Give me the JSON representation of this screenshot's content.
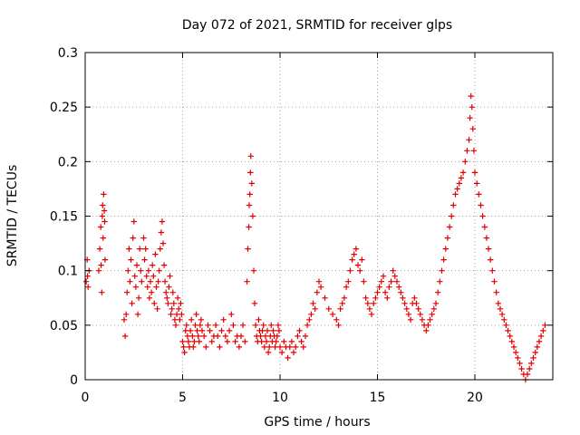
{
  "chart_data": {
    "type": "scatter",
    "title": "Day 072 of 2021, SRMTID for receiver glps",
    "xlabel": "GPS time / hours",
    "ylabel": "SRMTID / TECUs",
    "xlim": [
      0,
      24
    ],
    "ylim": [
      0,
      0.3
    ],
    "xticks": [
      0,
      5,
      10,
      15,
      20
    ],
    "xtick_labels": [
      "0",
      "5",
      "10",
      "15",
      "20"
    ],
    "yticks": [
      0,
      0.05,
      0.1,
      0.15,
      0.2,
      0.25,
      0.3
    ],
    "ytick_labels": [
      "0",
      "0.05",
      "0.1",
      "0.15",
      "0.2",
      "0.25",
      "0.3"
    ],
    "grid": true,
    "marker": "+",
    "color": "#e00000",
    "series": [
      {
        "name": "SRMTID",
        "points": [
          [
            0.05,
            0.09
          ],
          [
            0.1,
            0.11
          ],
          [
            0.12,
            0.095
          ],
          [
            0.15,
            0.085
          ],
          [
            0.2,
            0.1
          ],
          [
            0.7,
            0.1
          ],
          [
            0.75,
            0.12
          ],
          [
            0.8,
            0.14
          ],
          [
            0.82,
            0.105
          ],
          [
            0.85,
            0.08
          ],
          [
            0.88,
            0.15
          ],
          [
            0.9,
            0.16
          ],
          [
            0.92,
            0.13
          ],
          [
            0.95,
            0.17
          ],
          [
            0.98,
            0.155
          ],
          [
            1.0,
            0.145
          ],
          [
            1.02,
            0.11
          ],
          [
            2.0,
            0.055
          ],
          [
            2.05,
            0.04
          ],
          [
            2.1,
            0.06
          ],
          [
            2.15,
            0.08
          ],
          [
            2.2,
            0.1
          ],
          [
            2.25,
            0.12
          ],
          [
            2.3,
            0.09
          ],
          [
            2.35,
            0.11
          ],
          [
            2.4,
            0.07
          ],
          [
            2.45,
            0.13
          ],
          [
            2.5,
            0.145
          ],
          [
            2.55,
            0.095
          ],
          [
            2.6,
            0.085
          ],
          [
            2.65,
            0.105
          ],
          [
            2.7,
            0.06
          ],
          [
            2.75,
            0.075
          ],
          [
            2.8,
            0.12
          ],
          [
            2.85,
            0.1
          ],
          [
            2.9,
            0.09
          ],
          [
            3.0,
            0.13
          ],
          [
            3.05,
            0.11
          ],
          [
            3.1,
            0.12
          ],
          [
            3.15,
            0.095
          ],
          [
            3.2,
            0.085
          ],
          [
            3.25,
            0.1
          ],
          [
            3.3,
            0.075
          ],
          [
            3.35,
            0.09
          ],
          [
            3.4,
            0.08
          ],
          [
            3.45,
            0.105
          ],
          [
            3.5,
            0.095
          ],
          [
            3.55,
            0.07
          ],
          [
            3.6,
            0.115
          ],
          [
            3.65,
            0.085
          ],
          [
            3.7,
            0.065
          ],
          [
            3.75,
            0.09
          ],
          [
            3.8,
            0.1
          ],
          [
            3.85,
            0.12
          ],
          [
            3.9,
            0.135
          ],
          [
            3.95,
            0.145
          ],
          [
            4.0,
            0.125
          ],
          [
            4.05,
            0.105
          ],
          [
            4.1,
            0.09
          ],
          [
            4.15,
            0.08
          ],
          [
            4.2,
            0.075
          ],
          [
            4.25,
            0.07
          ],
          [
            4.3,
            0.085
          ],
          [
            4.35,
            0.095
          ],
          [
            4.4,
            0.06
          ],
          [
            4.45,
            0.065
          ],
          [
            4.5,
            0.08
          ],
          [
            4.55,
            0.07
          ],
          [
            4.6,
            0.055
          ],
          [
            4.65,
            0.05
          ],
          [
            4.7,
            0.06
          ],
          [
            4.75,
            0.075
          ],
          [
            4.8,
            0.065
          ],
          [
            4.85,
            0.055
          ],
          [
            4.9,
            0.07
          ],
          [
            4.95,
            0.06
          ],
          [
            5.0,
            0.035
          ],
          [
            5.05,
            0.03
          ],
          [
            5.1,
            0.025
          ],
          [
            5.15,
            0.045
          ],
          [
            5.2,
            0.05
          ],
          [
            5.25,
            0.04
          ],
          [
            5.3,
            0.035
          ],
          [
            5.35,
            0.03
          ],
          [
            5.4,
            0.045
          ],
          [
            5.45,
            0.055
          ],
          [
            5.5,
            0.04
          ],
          [
            5.55,
            0.03
          ],
          [
            5.6,
            0.035
          ],
          [
            5.65,
            0.05
          ],
          [
            5.7,
            0.06
          ],
          [
            5.75,
            0.045
          ],
          [
            5.8,
            0.04
          ],
          [
            5.85,
            0.035
          ],
          [
            5.9,
            0.05
          ],
          [
            5.95,
            0.055
          ],
          [
            6.0,
            0.045
          ],
          [
            6.1,
            0.04
          ],
          [
            6.2,
            0.03
          ],
          [
            6.3,
            0.05
          ],
          [
            6.4,
            0.045
          ],
          [
            6.5,
            0.035
          ],
          [
            6.6,
            0.04
          ],
          [
            6.7,
            0.05
          ],
          [
            6.8,
            0.04
          ],
          [
            6.9,
            0.03
          ],
          [
            7.0,
            0.045
          ],
          [
            7.1,
            0.055
          ],
          [
            7.2,
            0.04
          ],
          [
            7.3,
            0.035
          ],
          [
            7.4,
            0.045
          ],
          [
            7.5,
            0.06
          ],
          [
            7.6,
            0.05
          ],
          [
            7.7,
            0.035
          ],
          [
            7.8,
            0.04
          ],
          [
            7.9,
            0.03
          ],
          [
            8.0,
            0.04
          ],
          [
            8.1,
            0.05
          ],
          [
            8.2,
            0.035
          ],
          [
            8.3,
            0.09
          ],
          [
            8.35,
            0.12
          ],
          [
            8.4,
            0.14
          ],
          [
            8.42,
            0.16
          ],
          [
            8.45,
            0.17
          ],
          [
            8.48,
            0.19
          ],
          [
            8.5,
            0.205
          ],
          [
            8.55,
            0.18
          ],
          [
            8.6,
            0.15
          ],
          [
            8.65,
            0.1
          ],
          [
            8.7,
            0.07
          ],
          [
            8.75,
            0.05
          ],
          [
            8.8,
            0.04
          ],
          [
            8.85,
            0.035
          ],
          [
            8.9,
            0.055
          ],
          [
            8.95,
            0.045
          ],
          [
            9.0,
            0.04
          ],
          [
            9.05,
            0.035
          ],
          [
            9.1,
            0.045
          ],
          [
            9.15,
            0.05
          ],
          [
            9.2,
            0.03
          ],
          [
            9.25,
            0.04
          ],
          [
            9.3,
            0.035
          ],
          [
            9.35,
            0.045
          ],
          [
            9.4,
            0.025
          ],
          [
            9.45,
            0.03
          ],
          [
            9.5,
            0.04
          ],
          [
            9.55,
            0.05
          ],
          [
            9.6,
            0.035
          ],
          [
            9.65,
            0.045
          ],
          [
            9.7,
            0.04
          ],
          [
            9.75,
            0.03
          ],
          [
            9.8,
            0.035
          ],
          [
            9.85,
            0.04
          ],
          [
            9.9,
            0.05
          ],
          [
            9.95,
            0.045
          ],
          [
            10.0,
            0.03
          ],
          [
            10.1,
            0.025
          ],
          [
            10.2,
            0.035
          ],
          [
            10.3,
            0.03
          ],
          [
            10.4,
            0.02
          ],
          [
            10.5,
            0.03
          ],
          [
            10.6,
            0.035
          ],
          [
            10.7,
            0.025
          ],
          [
            10.8,
            0.03
          ],
          [
            10.9,
            0.04
          ],
          [
            11.0,
            0.045
          ],
          [
            11.1,
            0.035
          ],
          [
            11.2,
            0.03
          ],
          [
            11.3,
            0.04
          ],
          [
            11.4,
            0.05
          ],
          [
            11.5,
            0.055
          ],
          [
            11.6,
            0.06
          ],
          [
            11.7,
            0.07
          ],
          [
            11.8,
            0.065
          ],
          [
            11.9,
            0.08
          ],
          [
            12.0,
            0.09
          ],
          [
            12.1,
            0.085
          ],
          [
            12.3,
            0.075
          ],
          [
            12.5,
            0.065
          ],
          [
            12.7,
            0.06
          ],
          [
            12.9,
            0.055
          ],
          [
            13.0,
            0.05
          ],
          [
            13.1,
            0.065
          ],
          [
            13.2,
            0.07
          ],
          [
            13.3,
            0.075
          ],
          [
            13.4,
            0.085
          ],
          [
            13.5,
            0.09
          ],
          [
            13.6,
            0.1
          ],
          [
            13.7,
            0.11
          ],
          [
            13.8,
            0.115
          ],
          [
            13.9,
            0.12
          ],
          [
            14.0,
            0.105
          ],
          [
            14.1,
            0.1
          ],
          [
            14.2,
            0.11
          ],
          [
            14.3,
            0.09
          ],
          [
            14.4,
            0.075
          ],
          [
            14.5,
            0.07
          ],
          [
            14.6,
            0.065
          ],
          [
            14.7,
            0.06
          ],
          [
            14.8,
            0.07
          ],
          [
            14.9,
            0.075
          ],
          [
            15.0,
            0.08
          ],
          [
            15.1,
            0.085
          ],
          [
            15.2,
            0.09
          ],
          [
            15.3,
            0.095
          ],
          [
            15.4,
            0.08
          ],
          [
            15.5,
            0.075
          ],
          [
            15.6,
            0.085
          ],
          [
            15.7,
            0.09
          ],
          [
            15.8,
            0.1
          ],
          [
            15.9,
            0.095
          ],
          [
            16.0,
            0.09
          ],
          [
            16.1,
            0.085
          ],
          [
            16.2,
            0.08
          ],
          [
            16.3,
            0.075
          ],
          [
            16.4,
            0.07
          ],
          [
            16.5,
            0.065
          ],
          [
            16.6,
            0.06
          ],
          [
            16.7,
            0.055
          ],
          [
            16.8,
            0.07
          ],
          [
            16.9,
            0.075
          ],
          [
            17.0,
            0.07
          ],
          [
            17.1,
            0.065
          ],
          [
            17.2,
            0.06
          ],
          [
            17.3,
            0.055
          ],
          [
            17.4,
            0.05
          ],
          [
            17.5,
            0.045
          ],
          [
            17.6,
            0.05
          ],
          [
            17.7,
            0.055
          ],
          [
            17.8,
            0.06
          ],
          [
            17.9,
            0.065
          ],
          [
            18.0,
            0.07
          ],
          [
            18.1,
            0.08
          ],
          [
            18.2,
            0.09
          ],
          [
            18.3,
            0.1
          ],
          [
            18.4,
            0.11
          ],
          [
            18.5,
            0.12
          ],
          [
            18.6,
            0.13
          ],
          [
            18.7,
            0.14
          ],
          [
            18.8,
            0.15
          ],
          [
            18.9,
            0.16
          ],
          [
            19.0,
            0.17
          ],
          [
            19.1,
            0.175
          ],
          [
            19.2,
            0.18
          ],
          [
            19.3,
            0.185
          ],
          [
            19.4,
            0.19
          ],
          [
            19.5,
            0.2
          ],
          [
            19.6,
            0.21
          ],
          [
            19.7,
            0.22
          ],
          [
            19.75,
            0.24
          ],
          [
            19.8,
            0.26
          ],
          [
            19.85,
            0.25
          ],
          [
            19.9,
            0.23
          ],
          [
            19.95,
            0.21
          ],
          [
            20.0,
            0.19
          ],
          [
            20.1,
            0.18
          ],
          [
            20.2,
            0.17
          ],
          [
            20.3,
            0.16
          ],
          [
            20.4,
            0.15
          ],
          [
            20.5,
            0.14
          ],
          [
            20.6,
            0.13
          ],
          [
            20.7,
            0.12
          ],
          [
            20.8,
            0.11
          ],
          [
            20.9,
            0.1
          ],
          [
            21.0,
            0.09
          ],
          [
            21.1,
            0.08
          ],
          [
            21.2,
            0.07
          ],
          [
            21.3,
            0.065
          ],
          [
            21.4,
            0.06
          ],
          [
            21.5,
            0.055
          ],
          [
            21.6,
            0.05
          ],
          [
            21.7,
            0.045
          ],
          [
            21.8,
            0.04
          ],
          [
            21.9,
            0.035
          ],
          [
            22.0,
            0.03
          ],
          [
            22.1,
            0.025
          ],
          [
            22.2,
            0.02
          ],
          [
            22.3,
            0.015
          ],
          [
            22.4,
            0.01
          ],
          [
            22.5,
            0.005
          ],
          [
            22.6,
            0.0
          ],
          [
            22.7,
            0.005
          ],
          [
            22.8,
            0.01
          ],
          [
            22.9,
            0.015
          ],
          [
            23.0,
            0.02
          ],
          [
            23.1,
            0.025
          ],
          [
            23.2,
            0.03
          ],
          [
            23.3,
            0.035
          ],
          [
            23.4,
            0.04
          ],
          [
            23.5,
            0.045
          ],
          [
            23.6,
            0.05
          ]
        ]
      }
    ]
  }
}
